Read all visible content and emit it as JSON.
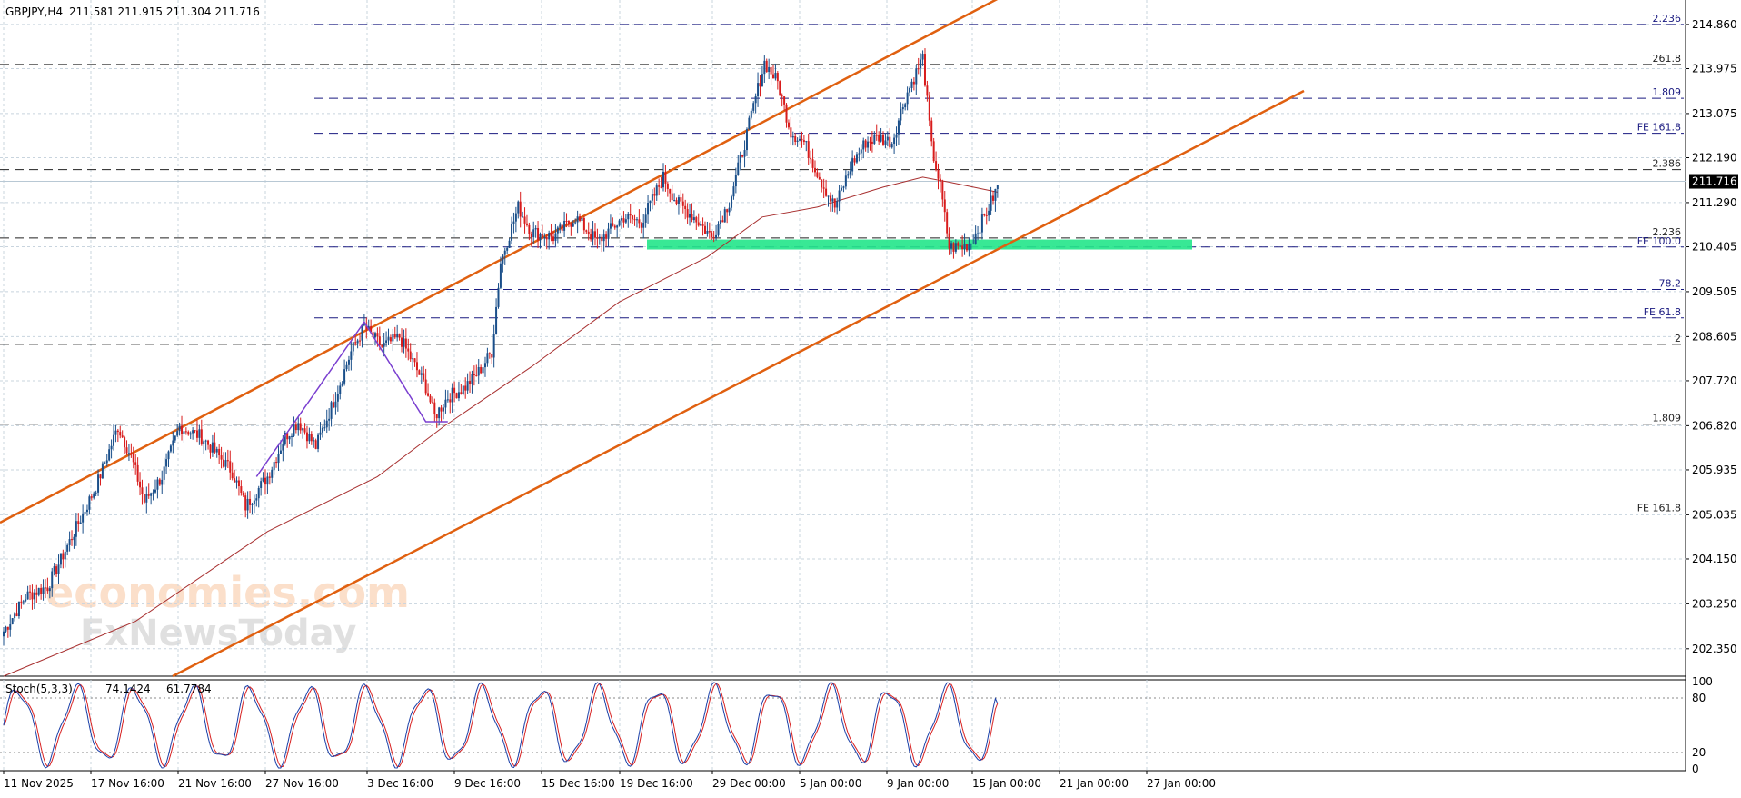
{
  "header": {
    "symbol": "GBPJPY,H4",
    "ohlc": "211.581 211.915 211.304 211.716"
  },
  "watermark": {
    "line1": "economies.com",
    "line2": "FxNewsToday"
  },
  "colors": {
    "background": "#ffffff",
    "grid": "#c8d4de",
    "bull": "#1a4f8a",
    "bear": "#d81c1c",
    "channel": "#e06010",
    "ma": "#a83030",
    "zigzag": "#7a3fd0",
    "zone": "#22e58a",
    "fib_line": "#1a1a80",
    "stoch_main": "#1a3fa8",
    "stoch_signal": "#d82020",
    "price_box": "#000000",
    "price_text": "#ffffff"
  },
  "chart_data": {
    "type": "candlestick",
    "symbol": "GBPJPY",
    "timeframe": "H4",
    "grid": true,
    "ylim": [
      201.8,
      215.35
    ],
    "y_ticks": [
      "214.860",
      "213.975",
      "213.075",
      "212.190",
      "211.290",
      "210.405",
      "209.505",
      "208.605",
      "207.720",
      "206.820",
      "205.935",
      "205.035",
      "204.150",
      "203.250",
      "202.350"
    ],
    "x_ticks": [
      "11 Nov 2025",
      "17 Nov 16:00",
      "21 Nov 16:00",
      "27 Nov 16:00",
      "3 Dec 16:00",
      "9 Dec 16:00",
      "15 Dec 16:00",
      "19 Dec 16:00",
      "29 Dec 00:00",
      "5 Jan 00:00",
      "9 Jan 00:00",
      "15 Jan 00:00",
      "21 Jan 00:00",
      "27 Jan 00:00"
    ],
    "current_price": "211.716",
    "price_anchors": [
      [
        0,
        202.7
      ],
      [
        10,
        203.4
      ],
      [
        20,
        203.6
      ],
      [
        30,
        204.5
      ],
      [
        42,
        205.6
      ],
      [
        52,
        206.8
      ],
      [
        58,
        206.2
      ],
      [
        64,
        205.3
      ],
      [
        72,
        205.8
      ],
      [
        80,
        206.8
      ],
      [
        90,
        206.6
      ],
      [
        96,
        206.3
      ],
      [
        104,
        205.9
      ],
      [
        110,
        205.2
      ],
      [
        120,
        205.8
      ],
      [
        128,
        206.6
      ],
      [
        134,
        206.9
      ],
      [
        142,
        206.4
      ],
      [
        150,
        207.3
      ],
      [
        158,
        208.3
      ],
      [
        164,
        208.8
      ],
      [
        172,
        208.4
      ],
      [
        180,
        208.6
      ],
      [
        186,
        208.1
      ],
      [
        192,
        207.6
      ],
      [
        196,
        207.0
      ],
      [
        202,
        207.4
      ],
      [
        210,
        207.6
      ],
      [
        216,
        207.9
      ],
      [
        222,
        208.3
      ],
      [
        226,
        210.1
      ],
      [
        234,
        211.2
      ],
      [
        240,
        210.7
      ],
      [
        250,
        210.6
      ],
      [
        260,
        211.0
      ],
      [
        270,
        210.5
      ],
      [
        282,
        211.0
      ],
      [
        290,
        210.9
      ],
      [
        300,
        211.8
      ],
      [
        306,
        211.3
      ],
      [
        314,
        211.0
      ],
      [
        322,
        210.6
      ],
      [
        330,
        211.3
      ],
      [
        336,
        212.3
      ],
      [
        342,
        213.4
      ],
      [
        346,
        214.1
      ],
      [
        352,
        213.7
      ],
      [
        358,
        212.7
      ],
      [
        364,
        212.5
      ],
      [
        372,
        211.7
      ],
      [
        378,
        211.2
      ],
      [
        386,
        212.1
      ],
      [
        392,
        212.5
      ],
      [
        398,
        212.6
      ],
      [
        404,
        212.5
      ],
      [
        410,
        213.4
      ],
      [
        414,
        213.8
      ],
      [
        418,
        214.2
      ],
      [
        422,
        212.4
      ],
      [
        426,
        211.6
      ],
      [
        430,
        210.4
      ],
      [
        436,
        210.4
      ],
      [
        440,
        210.5
      ],
      [
        446,
        211.0
      ],
      [
        452,
        211.6
      ]
    ],
    "moving_average": [
      [
        0,
        201.8
      ],
      [
        60,
        202.9
      ],
      [
        120,
        204.7
      ],
      [
        170,
        205.8
      ],
      [
        200,
        206.8
      ],
      [
        240,
        208.0
      ],
      [
        280,
        209.3
      ],
      [
        320,
        210.2
      ],
      [
        345,
        211.0
      ],
      [
        370,
        211.2
      ],
      [
        400,
        211.6
      ],
      [
        418,
        211.8
      ],
      [
        430,
        211.7
      ],
      [
        452,
        211.5
      ]
    ],
    "stochastic": {
      "label": "Stoch(5,3,3)",
      "main": "74.1424",
      "signal": "61.7784",
      "levels": [
        80,
        20
      ],
      "scale_ticks": [
        "100",
        "80",
        "20",
        "0"
      ]
    },
    "annotations": [
      {
        "label": "2.236",
        "price": 214.86,
        "style": "blue"
      },
      {
        "label": "261.8",
        "price": 214.06,
        "style": "black"
      },
      {
        "label": "1.809",
        "price": 213.38,
        "style": "blue"
      },
      {
        "label": "FE 161.8",
        "price": 212.68,
        "style": "blue"
      },
      {
        "label": "2.386",
        "price": 211.95,
        "style": "black"
      },
      {
        "label": "2.236",
        "price": 210.58,
        "style": "black"
      },
      {
        "label": "FE 100.0",
        "price": 210.4,
        "style": "blue"
      },
      {
        "label": "78.2",
        "price": 209.55,
        "style": "blue"
      },
      {
        "label": "FE 61.8",
        "price": 208.98,
        "style": "blue"
      },
      {
        "label": "2",
        "price": 208.45,
        "style": "black"
      },
      {
        "label": "1.809",
        "price": 206.85,
        "style": "black"
      },
      {
        "label": "FE 161.8",
        "price": 205.05,
        "style": "black"
      }
    ],
    "support_zone": {
      "low": 210.35,
      "high": 210.55
    }
  }
}
